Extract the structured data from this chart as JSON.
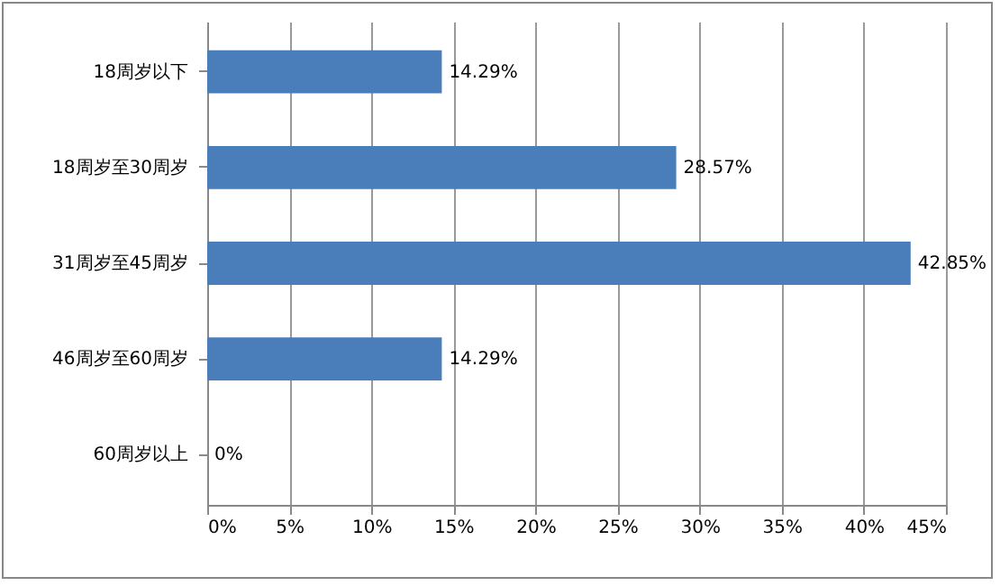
{
  "chart_data": {
    "type": "bar",
    "orientation": "horizontal",
    "categories": [
      "18周岁以下",
      "18周岁至30周岁",
      "31周岁至45周岁",
      "46周岁至60周岁",
      "60周岁以上"
    ],
    "values": [
      14.29,
      28.57,
      42.85,
      14.29,
      0
    ],
    "value_labels": [
      "14.29%",
      "28.57%",
      "42.85%",
      "14.29%",
      "0%"
    ],
    "color": "#4a7ebb",
    "xlim": [
      0,
      45
    ],
    "xticks": [
      {
        "value": 0,
        "label": "0%"
      },
      {
        "value": 5,
        "label": "5%"
      },
      {
        "value": 10,
        "label": "10%"
      },
      {
        "value": 15,
        "label": "15%"
      },
      {
        "value": 20,
        "label": "20%"
      },
      {
        "value": 25,
        "label": "25%"
      },
      {
        "value": 30,
        "label": "30%"
      },
      {
        "value": 35,
        "label": "35%"
      },
      {
        "value": 40,
        "label": "40%"
      },
      {
        "value": 45,
        "label": "45%"
      }
    ],
    "grid": "x"
  }
}
